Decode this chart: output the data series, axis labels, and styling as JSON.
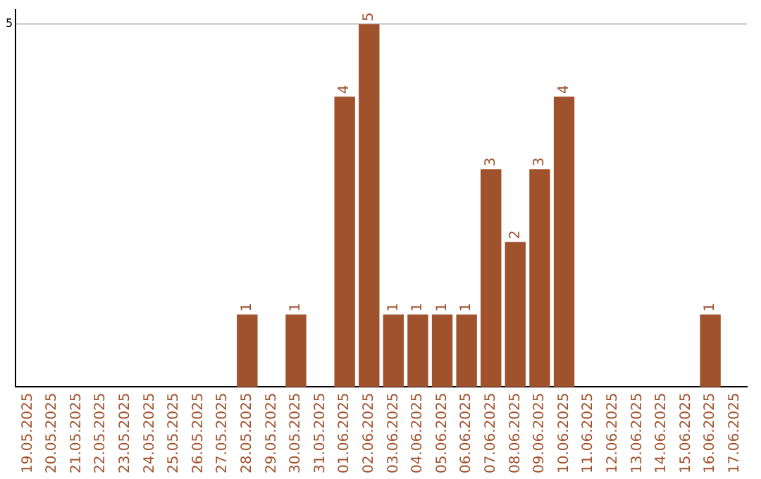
{
  "chart_data": {
    "type": "bar",
    "categories": [
      "19.05.2025",
      "20.05.2025",
      "21.05.2025",
      "22.05.2025",
      "23.05.2025",
      "24.05.2025",
      "25.05.2025",
      "26.05.2025",
      "27.05.2025",
      "28.05.2025",
      "29.05.2025",
      "30.05.2025",
      "31.05.2025",
      "01.06.2025",
      "02.06.2025",
      "03.06.2025",
      "04.06.2025",
      "05.06.2025",
      "06.06.2025",
      "07.06.2025",
      "08.06.2025",
      "09.06.2025",
      "10.06.2025",
      "11.06.2025",
      "12.06.2025",
      "13.06.2025",
      "14.06.2025",
      "15.06.2025",
      "16.06.2025",
      "17.06.2025"
    ],
    "values": [
      0,
      0,
      0,
      0,
      0,
      0,
      0,
      0,
      0,
      1,
      0,
      1,
      0,
      4,
      5,
      1,
      1,
      1,
      1,
      3,
      2,
      3,
      4,
      0,
      0,
      0,
      0,
      0,
      1,
      0
    ],
    "value_labels": [
      null,
      null,
      null,
      null,
      null,
      null,
      null,
      null,
      null,
      "1",
      null,
      "1",
      null,
      "4",
      "5",
      "1",
      "1",
      "1",
      "1",
      "3",
      "2",
      "3",
      "4",
      null,
      null,
      null,
      null,
      null,
      "1",
      null
    ],
    "color": "#a0522d",
    "ylim": [
      0,
      5.2
    ],
    "yticks": [
      5
    ],
    "grid": "y",
    "legend": false
  }
}
